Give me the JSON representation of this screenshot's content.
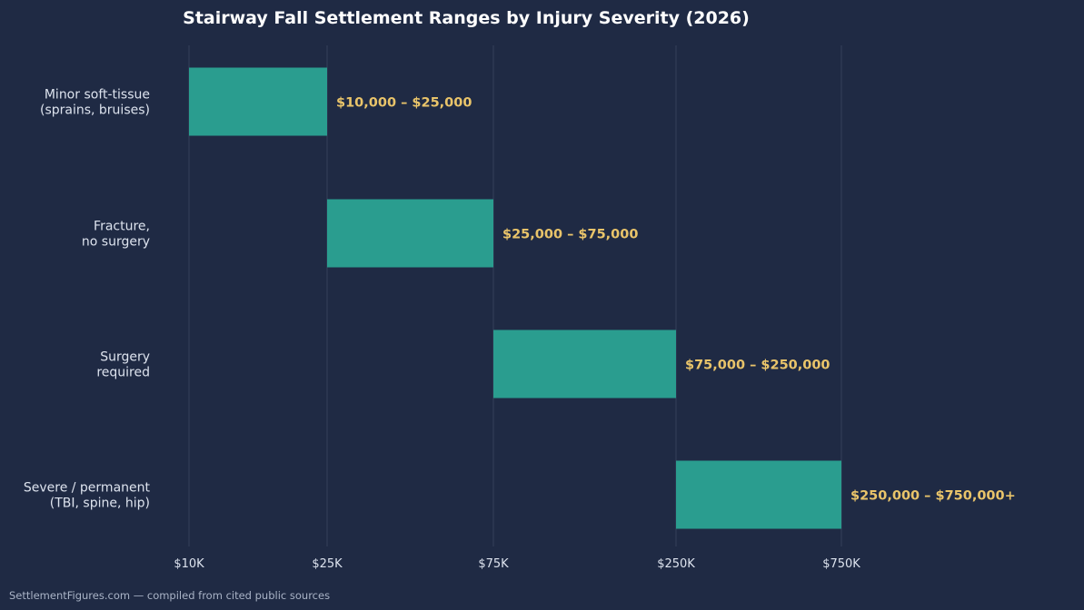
{
  "chart_data": {
    "type": "bar",
    "orientation": "horizontal",
    "floating": true,
    "title": "Stairway Fall Settlement Ranges by Injury Severity (2026)",
    "xlabel": "",
    "ylabel": "",
    "x_scale": "log",
    "xlim": [
      10000,
      750000
    ],
    "ticks": [
      {
        "value": 10000,
        "label": "$10K"
      },
      {
        "value": 25000,
        "label": "$25K"
      },
      {
        "value": 75000,
        "label": "$75K"
      },
      {
        "value": 250000,
        "label": "$250K"
      },
      {
        "value": 750000,
        "label": "$750K"
      }
    ],
    "grid": "vertical",
    "categories": [
      [
        "Minor soft-tissue",
        "(sprains, bruises)"
      ],
      [
        "Fracture,",
        "no surgery"
      ],
      [
        "Surgery",
        "required"
      ],
      [
        "Severe / permanent",
        "(TBI, spine, hip)"
      ]
    ],
    "ranges": [
      {
        "low": 10000,
        "high": 25000,
        "label": "$10,000 – $25,000"
      },
      {
        "low": 25000,
        "high": 75000,
        "label": "$25,000 – $75,000"
      },
      {
        "low": 75000,
        "high": 250000,
        "label": "$75,000 – $250,000"
      },
      {
        "low": 250000,
        "high": 750000,
        "label": "$250,000 – $750,000+"
      }
    ],
    "source_note": "SettlementFigures.com — compiled from cited public sources"
  },
  "colors": {
    "background": "#1f2a44",
    "bar": "#2a9d8f",
    "data_label": "#e9c46a",
    "gridline": "#34405a",
    "text": "#dde3ee",
    "title": "#ffffff",
    "note": "#a9b3c6"
  }
}
